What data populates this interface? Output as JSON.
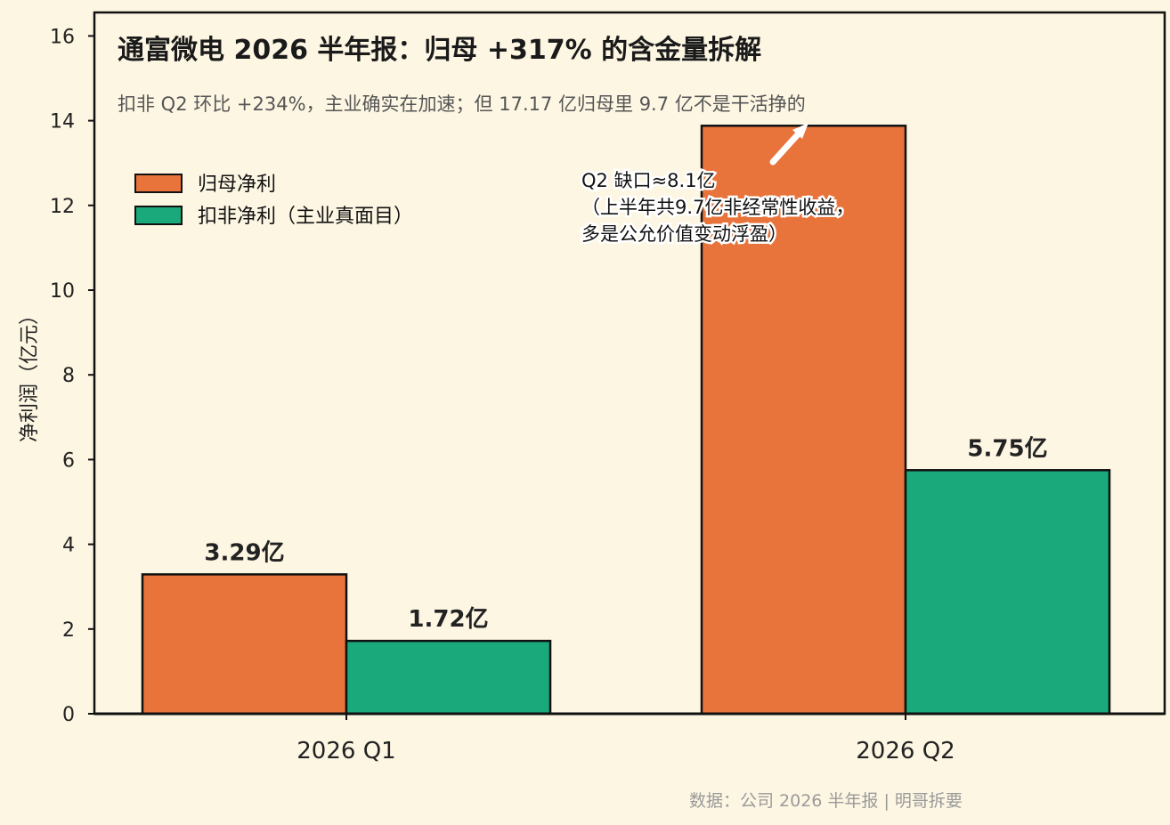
{
  "chart_data": {
    "type": "bar",
    "title": "通富微电 2026 半年报：归母 +317% 的含金量拆解",
    "subtitle": "扣非 Q2 环比 +234%，主业确实在加速；但 17.17 亿归母里 9.7 亿不是干活挣的",
    "xlabel": "",
    "ylabel": "净利润（亿元）",
    "categories": [
      "2026 Q1",
      "2026 Q2"
    ],
    "series": [
      {
        "name": "归母净利",
        "values": [
          3.29,
          13.88
        ],
        "color": "#e8743b",
        "labels": [
          "3.29亿",
          ""
        ]
      },
      {
        "name": "扣非净利（主业真面目）",
        "values": [
          1.72,
          5.75
        ],
        "color": "#1aa97a",
        "labels": [
          "1.72亿",
          "5.75亿"
        ]
      }
    ],
    "ylim": [
      0,
      16.5
    ],
    "yticks": [
      0,
      2,
      4,
      6,
      8,
      10,
      12,
      14,
      16
    ],
    "legend_position": "top-left",
    "grid": false,
    "annotation": {
      "lines": [
        "Q2 缺口≈8.1亿",
        "（上半年共9.7亿非经常性收益，",
        "多是公允价值变动浮盈）"
      ],
      "category": "2026 Q2"
    },
    "source": "数据：公司 2026 半年报 | 明哥拆要"
  }
}
